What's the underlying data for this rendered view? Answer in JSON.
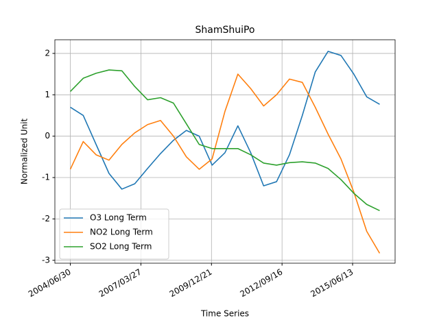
{
  "chart_data": {
    "type": "line",
    "title": "ShamShuiPo",
    "x_label": "Time Series",
    "y_label": "Normalized Unit",
    "x": [
      "2004/06/30",
      "2004/12/30",
      "2005/06/30",
      "2005/12/30",
      "2006/06/30",
      "2006/12/30",
      "2007/06/30",
      "2007/12/30",
      "2008/06/30",
      "2008/12/30",
      "2009/06/30",
      "2009/12/30",
      "2010/06/30",
      "2010/12/30",
      "2011/06/30",
      "2011/12/30",
      "2012/06/30",
      "2012/12/30",
      "2013/06/30",
      "2013/12/30",
      "2014/06/30",
      "2014/12/30",
      "2015/06/30",
      "2015/12/30",
      "2016/06/30"
    ],
    "series": [
      {
        "name": "O3 Long Term",
        "color": "#1f77b4",
        "values": [
          0.7,
          0.5,
          -0.2,
          -0.9,
          -1.28,
          -1.15,
          -0.78,
          -0.42,
          -0.1,
          0.14,
          0.0,
          -0.7,
          -0.4,
          0.25,
          -0.4,
          -1.2,
          -1.1,
          -0.45,
          0.5,
          1.55,
          2.05,
          1.95,
          1.5,
          0.95,
          0.77
        ]
      },
      {
        "name": "NO2 Long Term",
        "color": "#ff7f0e",
        "values": [
          -0.8,
          -0.13,
          -0.45,
          -0.58,
          -0.2,
          0.08,
          0.28,
          0.38,
          0.0,
          -0.5,
          -0.8,
          -0.55,
          0.6,
          1.5,
          1.15,
          0.73,
          1.0,
          1.38,
          1.3,
          0.7,
          0.05,
          -0.55,
          -1.35,
          -2.3,
          -2.83
        ]
      },
      {
        "name": "SO2 Long Term",
        "color": "#2ca02c",
        "values": [
          1.08,
          1.4,
          1.52,
          1.6,
          1.58,
          1.2,
          0.88,
          0.93,
          0.8,
          0.3,
          -0.2,
          -0.3,
          -0.3,
          -0.3,
          -0.45,
          -0.65,
          -0.7,
          -0.64,
          -0.62,
          -0.65,
          -0.78,
          -1.05,
          -1.38,
          -1.65,
          -1.8
        ]
      }
    ],
    "xlim": [
      "2003/11/24",
      "2017/02/04"
    ],
    "xticks": [
      "2004/06/30",
      "2007/03/27",
      "2009/12/21",
      "2012/09/16",
      "2015/06/13"
    ],
    "ylim": [
      -3.07,
      2.33
    ],
    "yticks": [
      -3,
      -2,
      -1,
      0,
      1,
      2
    ],
    "grid": true,
    "legend": "lower left"
  }
}
